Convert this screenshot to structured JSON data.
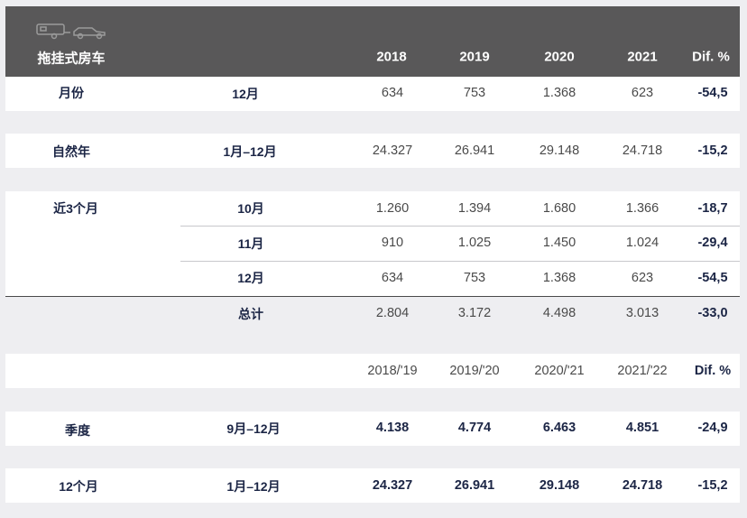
{
  "header": {
    "category": "拖挂式房车",
    "years": [
      "2018",
      "2019",
      "2020",
      "2021"
    ],
    "dif": "Dif. %",
    "icons": [
      "caravan-icon",
      "car-icon"
    ]
  },
  "rows": {
    "month": {
      "label": "月份",
      "period": "12月",
      "values": [
        "634",
        "753",
        "1.368",
        "623"
      ],
      "dif": "-54,5"
    },
    "calendar_year": {
      "label": "自然年",
      "period": "1月–12月",
      "values": [
        "24.327",
        "26.941",
        "29.148",
        "24.718"
      ],
      "dif": "-15,2"
    },
    "last3": {
      "label": "近3个月",
      "months": [
        {
          "period": "10月",
          "values": [
            "1.260",
            "1.394",
            "1.680",
            "1.366"
          ],
          "dif": "-18,7"
        },
        {
          "period": "11月",
          "values": [
            "910",
            "1.025",
            "1.450",
            "1.024"
          ],
          "dif": "-29,4"
        },
        {
          "period": "12月",
          "values": [
            "634",
            "753",
            "1.368",
            "623"
          ],
          "dif": "-54,5"
        }
      ],
      "total": {
        "period": "总计",
        "values": [
          "2.804",
          "3.172",
          "4.498",
          "3.013"
        ],
        "dif": "-33,0"
      }
    },
    "season_header": {
      "years": [
        "2018/'19",
        "2019/'20",
        "2020/'21",
        "2021/'22"
      ],
      "dif": "Dif. %"
    },
    "quarter": {
      "label": "季度",
      "period": "9月–12月",
      "values": [
        "4.138",
        "4.774",
        "6.463",
        "4.851"
      ],
      "dif": "-24,9"
    },
    "twelve_months": {
      "label": "12个月",
      "period": "1月–12月",
      "values": [
        "24.327",
        "26.941",
        "29.148",
        "24.718"
      ],
      "dif": "-15,2"
    }
  }
}
